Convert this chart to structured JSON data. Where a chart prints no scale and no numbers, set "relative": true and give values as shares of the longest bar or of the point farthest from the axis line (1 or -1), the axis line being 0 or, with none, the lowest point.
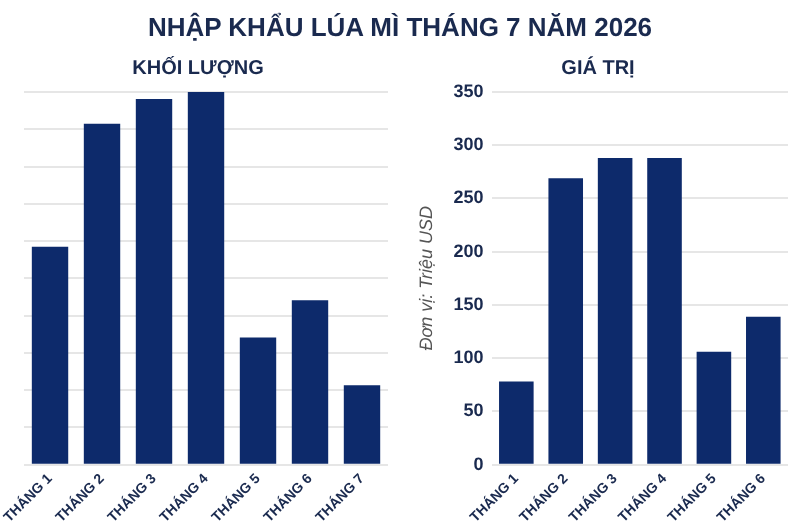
{
  "chart_data": [
    {
      "type": "bar",
      "title": "NHẬP KHẨU LÚA MÌ THÁNG 7 NĂM 2026",
      "subtitle": "KHỐI LƯỢNG",
      "categories": [
        "THÁNG 1",
        "THÁNG 2",
        "THÁNG 3",
        "THÁNG 4",
        "THÁNG 5",
        "THÁNG 6",
        "THÁNG 7"
      ],
      "values": [
        0.585,
        0.915,
        0.981,
        1,
        0.341,
        0.441,
        0.213
      ],
      "color": "#0d2a6b",
      "relative": true,
      "grid": "y"
    },
    {
      "type": "bar",
      "subtitle": "GIÁ TRỊ",
      "ylabel": "Đơn vị: Triệu USD",
      "categories": [
        "THÁNG 1",
        "THÁNG 2",
        "THÁNG 3",
        "THÁNG 4",
        "THÁNG 5",
        "THÁNG 6"
      ],
      "values": [
        78,
        269,
        288,
        288,
        106,
        139
      ],
      "color": "#0d2a6b",
      "ylim": [
        0,
        350
      ],
      "yticks": [
        0,
        50,
        100,
        150,
        200,
        250,
        300,
        350
      ],
      "grid": "y"
    }
  ]
}
